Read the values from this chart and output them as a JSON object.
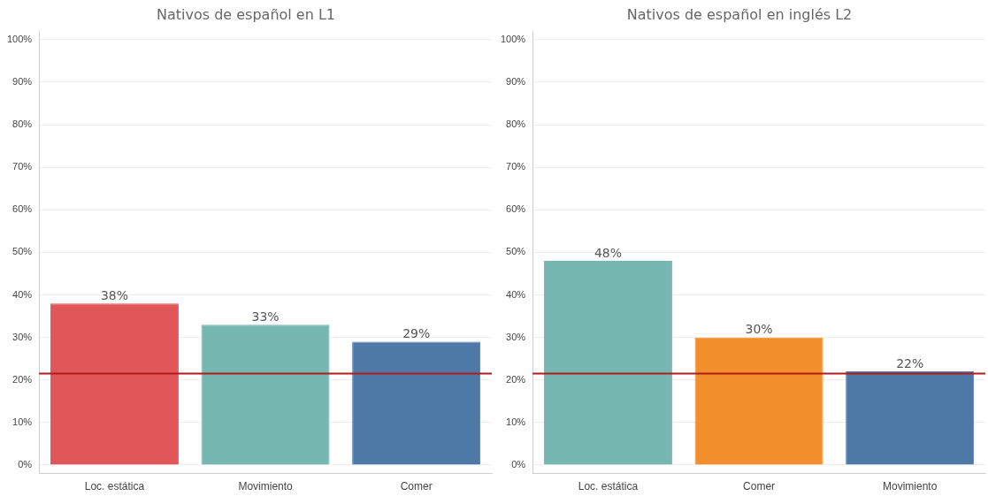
{
  "chart_data": [
    {
      "type": "bar",
      "title": "Nativos de español en L1",
      "categories": [
        "Loc. estática",
        "Movimiento",
        "Comer"
      ],
      "values": [
        38,
        33,
        29
      ],
      "colors": [
        "#e15759",
        "#76b7b2",
        "#4e79a7"
      ],
      "ylim": [
        -2,
        102
      ],
      "yticks": [
        {
          "value": 0,
          "label": "0%"
        },
        {
          "value": 10,
          "label": "10%"
        },
        {
          "value": 20,
          "label": "20%"
        },
        {
          "value": 30,
          "label": "30%"
        },
        {
          "value": 40,
          "label": "40%"
        },
        {
          "value": 50,
          "label": "50%"
        },
        {
          "value": 60,
          "label": "60%"
        },
        {
          "value": 70,
          "label": "70%"
        },
        {
          "value": 80,
          "label": "80%"
        },
        {
          "value": 90,
          "label": "90%"
        },
        {
          "value": 100,
          "label": "100%"
        }
      ],
      "grid": "y",
      "value_labels": [
        "38%",
        "33%",
        "29%"
      ],
      "ref_lines": [
        {
          "axis": "y",
          "value": 21.5,
          "color": "#b01c1c"
        }
      ]
    },
    {
      "type": "bar",
      "title": "Nativos de español en inglés L2",
      "categories": [
        "Loc. estática",
        "Comer",
        "Movimiento"
      ],
      "values": [
        48,
        30,
        22
      ],
      "colors": [
        "#76b7b2",
        "#f28e2b",
        "#4e79a7"
      ],
      "ylim": [
        -2,
        102
      ],
      "yticks": [
        {
          "value": 0,
          "label": "0%"
        },
        {
          "value": 10,
          "label": "10%"
        },
        {
          "value": 20,
          "label": "20%"
        },
        {
          "value": 30,
          "label": "30%"
        },
        {
          "value": 40,
          "label": "40%"
        },
        {
          "value": 50,
          "label": "50%"
        },
        {
          "value": 60,
          "label": "60%"
        },
        {
          "value": 70,
          "label": "70%"
        },
        {
          "value": 80,
          "label": "80%"
        },
        {
          "value": 90,
          "label": "90%"
        },
        {
          "value": 100,
          "label": "100%"
        }
      ],
      "grid": "y",
      "value_labels": [
        "48%",
        "30%",
        "22%"
      ],
      "ref_lines": [
        {
          "axis": "y",
          "value": 21.5,
          "color": "#b01c1c"
        }
      ]
    }
  ]
}
